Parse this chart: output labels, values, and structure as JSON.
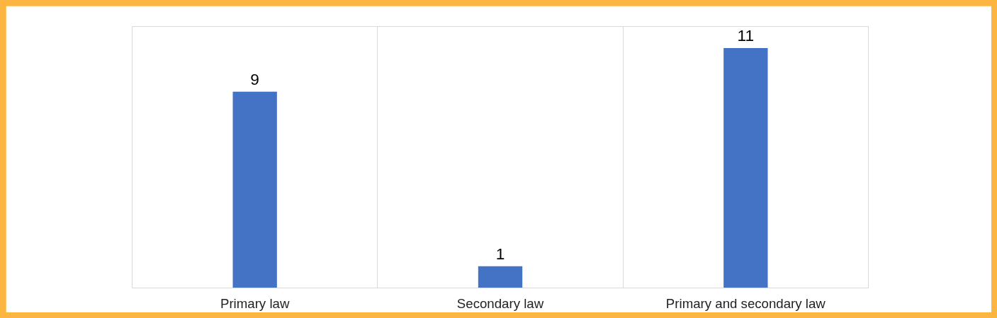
{
  "chart_data": {
    "type": "bar",
    "categories": [
      "Primary law",
      "Secondary law",
      "Primary and secondary law"
    ],
    "values": [
      9,
      1,
      11
    ],
    "color": "#4472c4",
    "data_labels": true,
    "grid": "x"
  }
}
